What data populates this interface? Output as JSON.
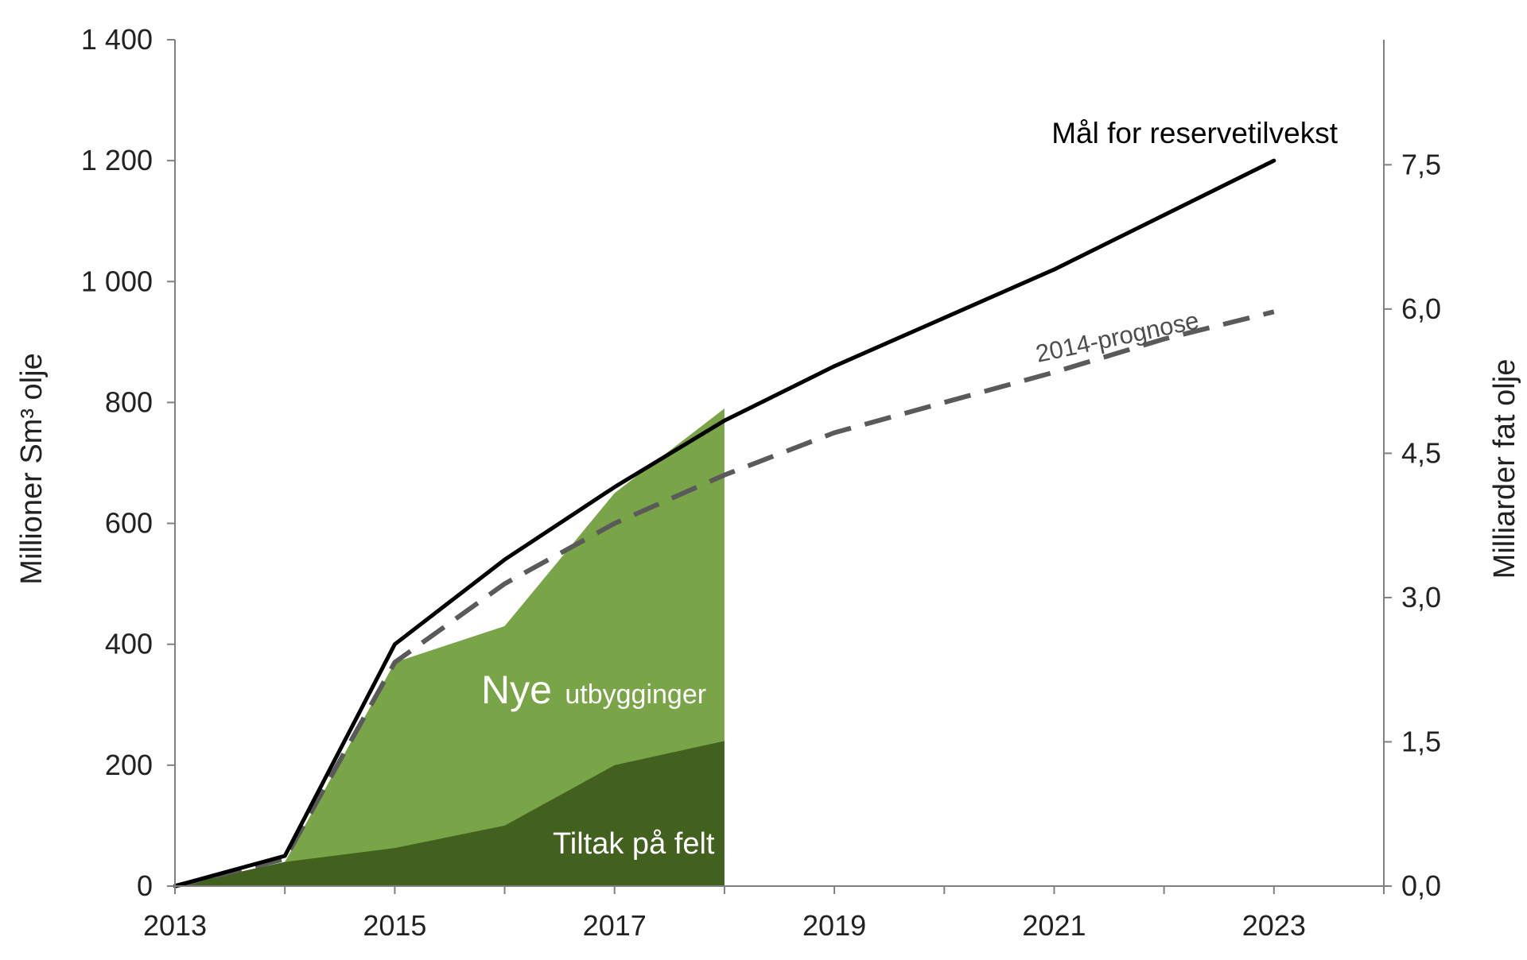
{
  "chart_data": {
    "type": "area",
    "x_ticks": [
      "2013",
      "2015",
      "2017",
      "2019",
      "2021",
      "2023"
    ],
    "xlim": [
      2013,
      2024
    ],
    "y_left": {
      "label": "Millioner  Sm³ olje",
      "lim": [
        0,
        1400
      ],
      "ticks": [
        0,
        200,
        400,
        600,
        800,
        1000,
        1200,
        1400
      ],
      "tick_labels": [
        "0",
        "200",
        "400",
        "600",
        "800",
        "1 000",
        "1 200",
        "1 400"
      ]
    },
    "y_right": {
      "label": "Milliarder  fat olje",
      "lim": [
        0,
        8.8
      ],
      "ticks": [
        0,
        1.5,
        3.0,
        4.5,
        6.0,
        7.5
      ],
      "tick_labels": [
        "0,0",
        "1,5",
        "3,0",
        "4,5",
        "6,0",
        "7,5"
      ]
    },
    "series": [
      {
        "name": "Tiltak på felt",
        "type": "area",
        "color": "#42601e",
        "x": [
          2013,
          2014,
          2015,
          2016,
          2017,
          2018
        ],
        "y": [
          0,
          40,
          63,
          100,
          200,
          240
        ]
      },
      {
        "name": "Nye utbygginger",
        "type": "area",
        "color": "#79a448",
        "x": [
          2013,
          2014,
          2015,
          2016,
          2017,
          2018
        ],
        "y": [
          0,
          40,
          370,
          430,
          650,
          790
        ]
      },
      {
        "name": "2014-prognose",
        "type": "line",
        "style": "dashed",
        "color": "#5a5a5a",
        "x": [
          2013,
          2014,
          2015,
          2016,
          2017,
          2018,
          2019,
          2020,
          2021,
          2022,
          2023
        ],
        "y": [
          0,
          45,
          370,
          500,
          600,
          680,
          750,
          800,
          850,
          905,
          950
        ]
      },
      {
        "name": "Mål for reservetilvekst",
        "type": "line",
        "style": "solid",
        "color": "#000000",
        "x": [
          2013,
          2014,
          2015,
          2016,
          2017,
          2018,
          2019,
          2020,
          2021,
          2022,
          2023
        ],
        "y": [
          0,
          50,
          400,
          540,
          660,
          770,
          860,
          940,
          1020,
          1110,
          1200
        ]
      }
    ],
    "annotations": {
      "target": "Mål for reservetilvekst",
      "prognosis": "2014-prognose",
      "new_fields_big": "Nye",
      "new_fields_small": "utbygginger",
      "field_measures": "Tiltak på felt"
    }
  }
}
